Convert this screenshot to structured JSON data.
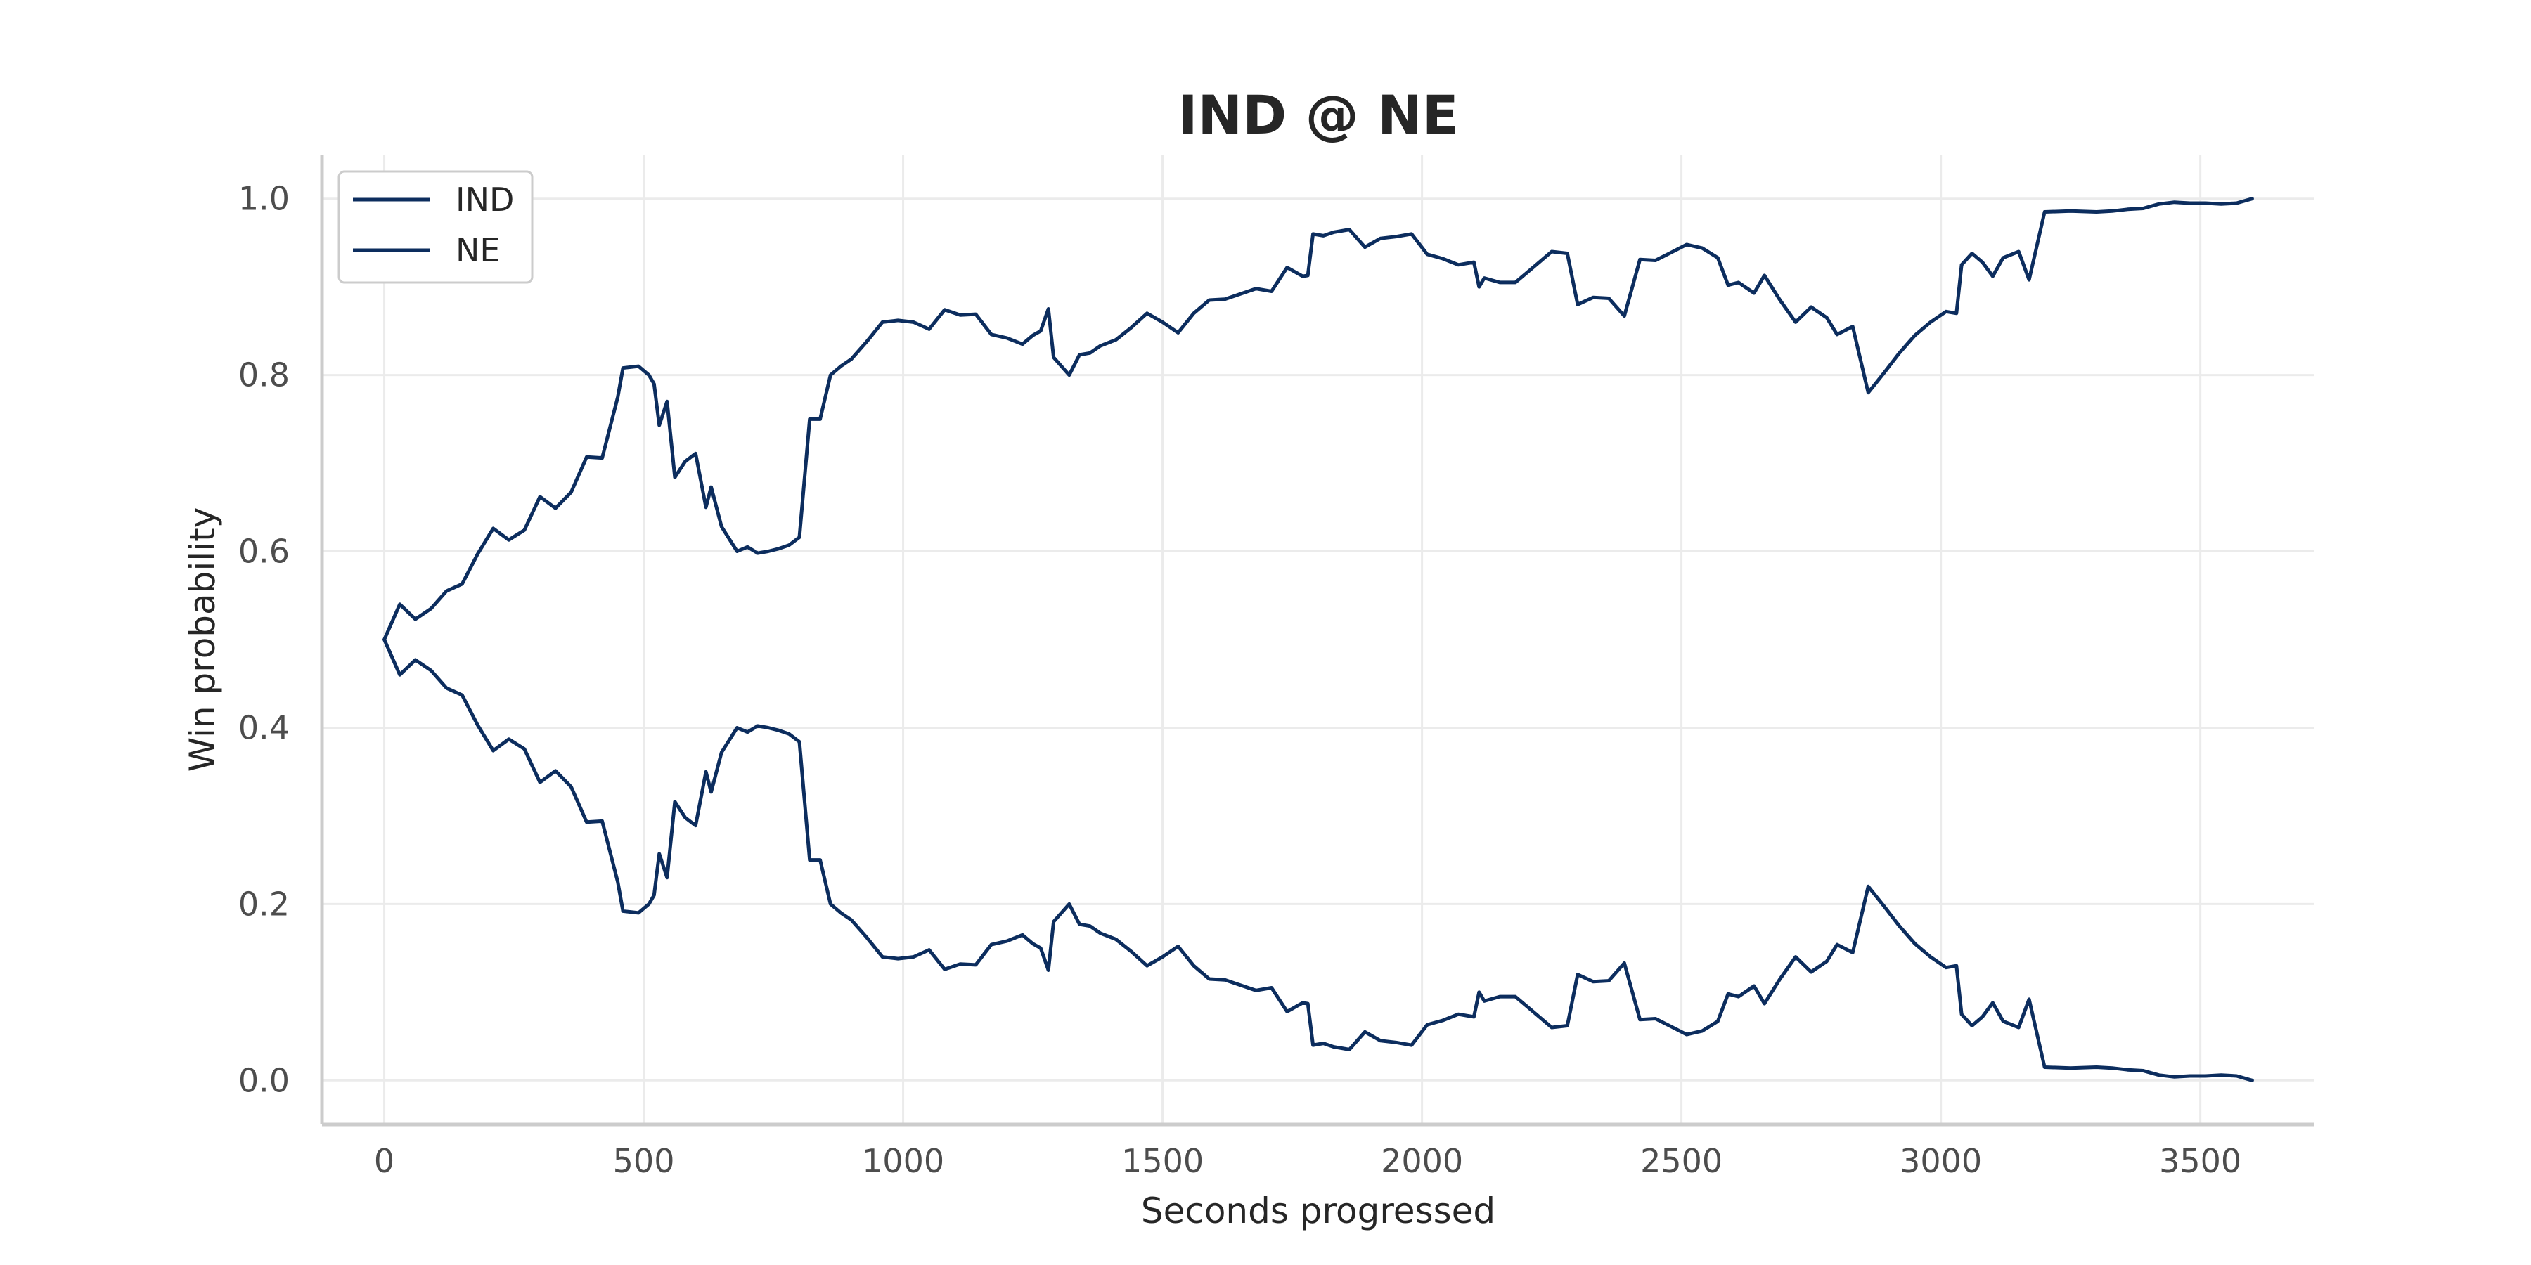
{
  "chart_data": {
    "type": "line",
    "title": "IND @ NE",
    "xlabel": "Seconds progressed",
    "ylabel": "Win probability",
    "xlim": [
      -120,
      3720
    ],
    "ylim": [
      -0.05,
      1.05
    ],
    "xticks": [
      0,
      500,
      1000,
      1500,
      2000,
      2500,
      3000,
      3500
    ],
    "yticks": [
      0.0,
      0.2,
      0.4,
      0.6,
      0.8,
      1.0
    ],
    "xtick_labels": [
      "0",
      "500",
      "1000",
      "1500",
      "2000",
      "2500",
      "3000",
      "3500"
    ],
    "ytick_labels": [
      "0.0",
      "0.2",
      "0.4",
      "0.6",
      "0.8",
      "1.0"
    ],
    "grid": true,
    "legend_position": "top-left",
    "colors": {
      "line": "#0c2d5e",
      "grid": "#ebebeb",
      "axis": "#cccccc"
    },
    "series": [
      {
        "name": "IND",
        "x": [
          0,
          30,
          60,
          90,
          120,
          150,
          180,
          210,
          240,
          270,
          300,
          330,
          360,
          390,
          420,
          450,
          460,
          490,
          510,
          520,
          530,
          545,
          560,
          580,
          600,
          620,
          630,
          650,
          680,
          700,
          720,
          740,
          760,
          780,
          800,
          820,
          840,
          860,
          880,
          900,
          930,
          960,
          990,
          1020,
          1050,
          1080,
          1110,
          1140,
          1170,
          1200,
          1230,
          1250,
          1265,
          1280,
          1290,
          1320,
          1340,
          1360,
          1380,
          1410,
          1440,
          1470,
          1500,
          1530,
          1560,
          1590,
          1620,
          1650,
          1680,
          1710,
          1740,
          1770,
          1780,
          1790,
          1810,
          1830,
          1860,
          1890,
          1920,
          1950,
          1980,
          2010,
          2040,
          2070,
          2100,
          2110,
          2120,
          2150,
          2180,
          2210,
          2250,
          2280,
          2300,
          2330,
          2360,
          2390,
          2420,
          2450,
          2480,
          2510,
          2540,
          2570,
          2590,
          2610,
          2640,
          2660,
          2690,
          2720,
          2750,
          2780,
          2800,
          2830,
          2860,
          2890,
          2920,
          2950,
          2980,
          3010,
          3030,
          3040,
          3060,
          3080,
          3100,
          3120,
          3150,
          3170,
          3200,
          3250,
          3300,
          3330,
          3360,
          3390,
          3420,
          3450,
          3480,
          3510,
          3540,
          3570,
          3600
        ],
        "y": [
          0.5,
          0.46,
          0.477,
          0.465,
          0.445,
          0.437,
          0.403,
          0.374,
          0.387,
          0.376,
          0.338,
          0.351,
          0.333,
          0.293,
          0.294,
          0.225,
          0.192,
          0.19,
          0.2,
          0.21,
          0.257,
          0.23,
          0.316,
          0.298,
          0.289,
          0.35,
          0.327,
          0.372,
          0.4,
          0.395,
          0.402,
          0.4,
          0.397,
          0.393,
          0.384,
          0.25,
          0.25,
          0.2,
          0.19,
          0.182,
          0.162,
          0.14,
          0.138,
          0.14,
          0.148,
          0.126,
          0.132,
          0.131,
          0.154,
          0.158,
          0.165,
          0.155,
          0.15,
          0.125,
          0.18,
          0.2,
          0.177,
          0.175,
          0.167,
          0.16,
          0.146,
          0.13,
          0.14,
          0.152,
          0.13,
          0.115,
          0.114,
          0.108,
          0.102,
          0.105,
          0.078,
          0.088,
          0.087,
          0.04,
          0.042,
          0.038,
          0.035,
          0.055,
          0.045,
          0.043,
          0.04,
          0.063,
          0.068,
          0.075,
          0.072,
          0.1,
          0.09,
          0.095,
          0.095,
          0.08,
          0.06,
          0.062,
          0.12,
          0.112,
          0.113,
          0.133,
          0.069,
          0.07,
          0.061,
          0.052,
          0.056,
          0.067,
          0.098,
          0.095,
          0.107,
          0.087,
          0.115,
          0.14,
          0.123,
          0.135,
          0.154,
          0.145,
          0.22,
          0.198,
          0.175,
          0.155,
          0.14,
          0.128,
          0.13,
          0.075,
          0.062,
          0.072,
          0.088,
          0.067,
          0.06,
          0.092,
          0.015,
          0.014,
          0.015,
          0.014,
          0.012,
          0.011,
          0.006,
          0.004,
          0.005,
          0.005,
          0.006,
          0.005,
          0.0
        ]
      },
      {
        "name": "NE",
        "x": [
          0,
          30,
          60,
          90,
          120,
          150,
          180,
          210,
          240,
          270,
          300,
          330,
          360,
          390,
          420,
          450,
          460,
          490,
          510,
          520,
          530,
          545,
          560,
          580,
          600,
          620,
          630,
          650,
          680,
          700,
          720,
          740,
          760,
          780,
          800,
          820,
          840,
          860,
          880,
          900,
          930,
          960,
          990,
          1020,
          1050,
          1080,
          1110,
          1140,
          1170,
          1200,
          1230,
          1250,
          1265,
          1280,
          1290,
          1320,
          1340,
          1360,
          1380,
          1410,
          1440,
          1470,
          1500,
          1530,
          1560,
          1590,
          1620,
          1650,
          1680,
          1710,
          1740,
          1770,
          1780,
          1790,
          1810,
          1830,
          1860,
          1890,
          1920,
          1950,
          1980,
          2010,
          2040,
          2070,
          2100,
          2110,
          2120,
          2150,
          2180,
          2210,
          2250,
          2280,
          2300,
          2330,
          2360,
          2390,
          2420,
          2450,
          2480,
          2510,
          2540,
          2570,
          2590,
          2610,
          2640,
          2660,
          2690,
          2720,
          2750,
          2780,
          2800,
          2830,
          2860,
          2890,
          2920,
          2950,
          2980,
          3010,
          3030,
          3040,
          3060,
          3080,
          3100,
          3120,
          3150,
          3170,
          3200,
          3250,
          3300,
          3330,
          3360,
          3390,
          3420,
          3450,
          3480,
          3510,
          3540,
          3570,
          3600
        ],
        "y": [
          0.5,
          0.54,
          0.523,
          0.535,
          0.555,
          0.563,
          0.597,
          0.626,
          0.613,
          0.624,
          0.662,
          0.649,
          0.667,
          0.707,
          0.706,
          0.775,
          0.808,
          0.81,
          0.8,
          0.79,
          0.743,
          0.77,
          0.684,
          0.702,
          0.711,
          0.65,
          0.673,
          0.628,
          0.6,
          0.605,
          0.598,
          0.6,
          0.603,
          0.607,
          0.616,
          0.75,
          0.75,
          0.8,
          0.81,
          0.818,
          0.838,
          0.86,
          0.862,
          0.86,
          0.852,
          0.874,
          0.868,
          0.869,
          0.846,
          0.842,
          0.835,
          0.845,
          0.85,
          0.875,
          0.82,
          0.8,
          0.823,
          0.825,
          0.833,
          0.84,
          0.854,
          0.87,
          0.86,
          0.848,
          0.87,
          0.885,
          0.886,
          0.892,
          0.898,
          0.895,
          0.922,
          0.912,
          0.913,
          0.96,
          0.958,
          0.962,
          0.965,
          0.945,
          0.955,
          0.957,
          0.96,
          0.937,
          0.932,
          0.925,
          0.928,
          0.9,
          0.91,
          0.905,
          0.905,
          0.92,
          0.94,
          0.938,
          0.88,
          0.888,
          0.887,
          0.867,
          0.931,
          0.93,
          0.939,
          0.948,
          0.944,
          0.933,
          0.902,
          0.905,
          0.893,
          0.913,
          0.885,
          0.86,
          0.877,
          0.865,
          0.846,
          0.855,
          0.78,
          0.802,
          0.825,
          0.845,
          0.86,
          0.872,
          0.87,
          0.925,
          0.938,
          0.928,
          0.912,
          0.933,
          0.94,
          0.908,
          0.985,
          0.986,
          0.985,
          0.986,
          0.988,
          0.989,
          0.994,
          0.996,
          0.995,
          0.995,
          0.994,
          0.995,
          1.0
        ]
      }
    ]
  }
}
